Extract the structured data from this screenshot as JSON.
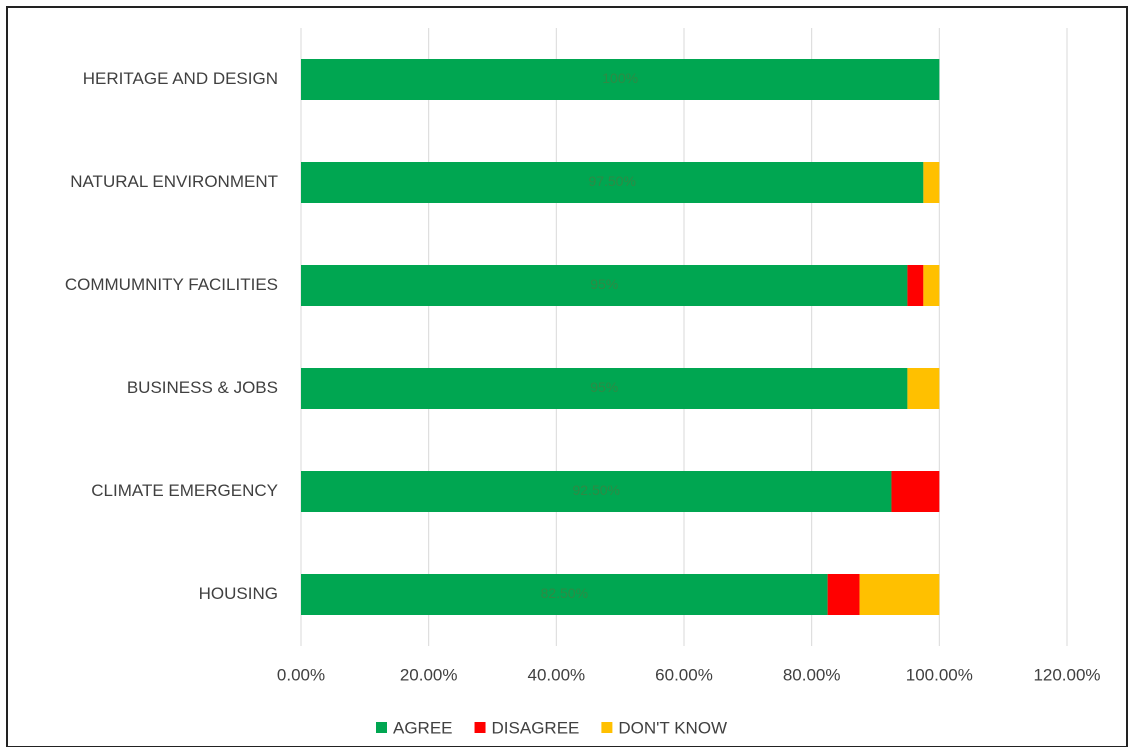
{
  "chart_data": {
    "type": "stacked-bar-horizontal",
    "categories": [
      "HERITAGE AND DESIGN",
      "NATURAL ENVIRONMENT",
      "COMMUMNITY FACILITIES",
      "BUSINESS & JOBS",
      "CLIMATE EMERGENCY",
      "HOUSING"
    ],
    "series": [
      {
        "name": "AGREE",
        "color": "#00a651",
        "values": [
          100,
          97.5,
          95,
          95,
          92.5,
          82.5
        ],
        "value_labels": [
          "100%",
          "97.50%",
          "95%",
          "95%",
          "92.50%",
          "82.50%"
        ]
      },
      {
        "name": "DISAGREE",
        "color": "#ff0000",
        "values": [
          0,
          0,
          2.5,
          0,
          7.5,
          5
        ]
      },
      {
        "name": "DON'T KNOW",
        "color": "#ffc000",
        "values": [
          0,
          2.5,
          2.5,
          5,
          0,
          12.5
        ]
      }
    ],
    "xlim": [
      0,
      120
    ],
    "xticks": [
      {
        "value": 0,
        "label": "0.00%"
      },
      {
        "value": 20,
        "label": "20.00%"
      },
      {
        "value": 40,
        "label": "40.00%"
      },
      {
        "value": 60,
        "label": "60.00%"
      },
      {
        "value": 80,
        "label": "80.00%"
      },
      {
        "value": 100,
        "label": "100.00%"
      },
      {
        "value": 120,
        "label": "120.00%"
      }
    ],
    "grid": true,
    "legend": "bottom"
  }
}
